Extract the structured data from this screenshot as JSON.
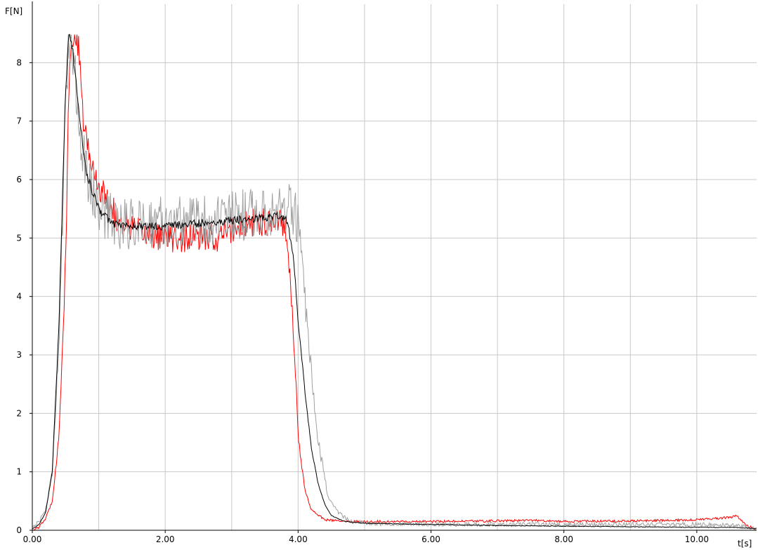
{
  "chart_data": {
    "type": "line",
    "title": "",
    "xlabel": "t[s]",
    "ylabel": "F[N]",
    "xlim": [
      0,
      10.9
    ],
    "ylim": [
      0,
      9
    ],
    "x_ticks": [
      0,
      2,
      4,
      6,
      8,
      10
    ],
    "x_tick_labels": [
      "0.00",
      "2.00",
      "4.00",
      "6.00",
      "8.00",
      "10.00"
    ],
    "x_grid": [
      0,
      1,
      2,
      3,
      4,
      5,
      6,
      7,
      8,
      9,
      10
    ],
    "y_ticks": [
      0,
      1,
      2,
      3,
      4,
      5,
      6,
      7,
      8
    ],
    "y_tick_labels": [
      "0",
      "1",
      "2",
      "3",
      "4",
      "5",
      "6",
      "7",
      "8"
    ],
    "grid": true,
    "legend": "none",
    "series": [
      {
        "color": "#ff0000",
        "noise": 0.25,
        "x": [
          0,
          0.1,
          0.2,
          0.3,
          0.4,
          0.5,
          0.55,
          0.6,
          0.65,
          0.7,
          0.75,
          0.85,
          1.0,
          1.3,
          1.6,
          2.0,
          2.4,
          2.8,
          3.0,
          3.3,
          3.6,
          3.7,
          3.8,
          3.85,
          3.9,
          3.95,
          4.0,
          4.1,
          4.2,
          4.4,
          4.7,
          5.0,
          6.0,
          7.0,
          7.5,
          8.0,
          9.0,
          10.0,
          10.5,
          10.6,
          10.75,
          10.9
        ],
        "y": [
          0,
          0.05,
          0.2,
          0.5,
          1.6,
          4.5,
          7.5,
          8.5,
          8.5,
          8.2,
          7.2,
          6.4,
          5.9,
          5.3,
          5.1,
          5.0,
          5.0,
          5.0,
          5.15,
          5.25,
          5.3,
          5.35,
          5.25,
          4.8,
          4.0,
          3.0,
          1.6,
          0.7,
          0.35,
          0.18,
          0.15,
          0.15,
          0.15,
          0.16,
          0.17,
          0.15,
          0.16,
          0.18,
          0.22,
          0.25,
          0.08,
          0.02
        ]
      },
      {
        "color": "#a0a0a0",
        "noise": 0.45,
        "x": [
          0,
          0.1,
          0.2,
          0.3,
          0.4,
          0.5,
          0.55,
          0.6,
          0.7,
          0.8,
          1.0,
          1.3,
          1.6,
          2.0,
          2.5,
          3.0,
          3.4,
          3.8,
          3.95,
          4.0,
          4.05,
          4.1,
          4.2,
          4.3,
          4.45,
          4.6,
          4.8,
          5.0,
          6.0,
          7.0,
          8.0,
          9.0,
          10.0,
          10.6,
          10.9
        ],
        "y": [
          0.05,
          0.15,
          0.35,
          1.0,
          3.2,
          7.0,
          8.4,
          8.4,
          7.0,
          6.2,
          5.5,
          5.25,
          5.25,
          5.3,
          5.3,
          5.35,
          5.45,
          5.5,
          5.45,
          5.2,
          4.6,
          3.9,
          2.6,
          1.5,
          0.6,
          0.3,
          0.15,
          0.12,
          0.1,
          0.1,
          0.1,
          0.1,
          0.1,
          0.08,
          0.02
        ]
      },
      {
        "color": "#000000",
        "noise": 0.07,
        "x": [
          0,
          0.1,
          0.2,
          0.3,
          0.4,
          0.5,
          0.55,
          0.6,
          0.7,
          0.8,
          0.9,
          1.0,
          1.2,
          1.5,
          2.0,
          2.5,
          3.0,
          3.5,
          3.7,
          3.8,
          3.85,
          3.9,
          3.95,
          4.0,
          4.1,
          4.2,
          4.3,
          4.4,
          4.5,
          4.7,
          5.0,
          6.0,
          7.0,
          8.0,
          9.0,
          10.0,
          10.5,
          10.9
        ],
        "y": [
          0.02,
          0.1,
          0.3,
          1.0,
          3.5,
          7.5,
          8.5,
          8.3,
          7.2,
          6.2,
          5.8,
          5.5,
          5.25,
          5.2,
          5.2,
          5.25,
          5.3,
          5.35,
          5.4,
          5.35,
          5.2,
          4.9,
          4.4,
          3.6,
          2.4,
          1.4,
          0.8,
          0.45,
          0.25,
          0.15,
          0.12,
          0.1,
          0.08,
          0.07,
          0.06,
          0.05,
          0.05,
          0.03
        ]
      }
    ]
  }
}
